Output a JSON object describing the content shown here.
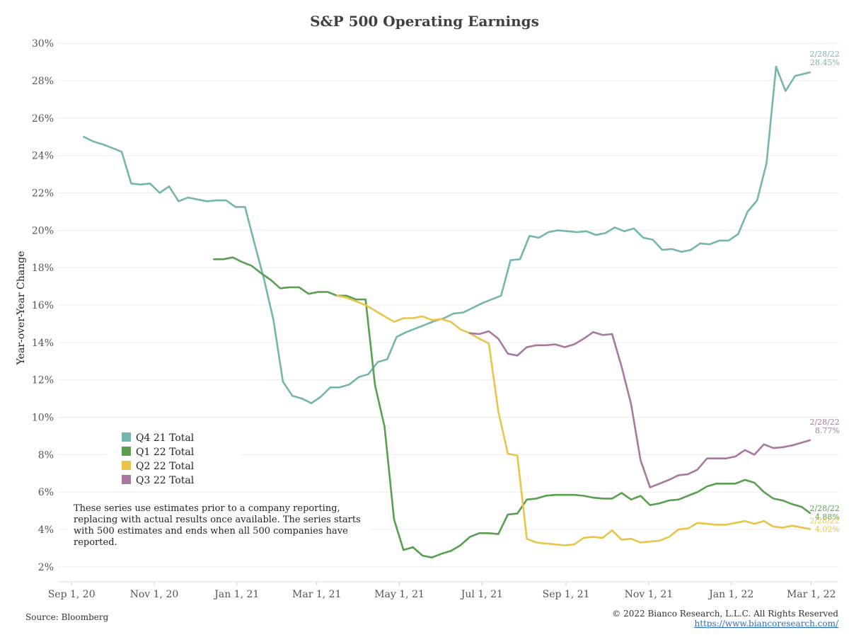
{
  "chart_data": {
    "type": "line",
    "title": "S&P 500 Operating Earnings",
    "ylabel": "Year-over-Year Change",
    "xlabel": "",
    "ylim": [
      1.2,
      30.5
    ],
    "xlim": [
      "2020-08-22",
      "2022-03-21"
    ],
    "yticks": [
      2,
      4,
      6,
      8,
      10,
      12,
      14,
      16,
      18,
      20,
      22,
      24,
      26,
      28,
      30
    ],
    "ytick_labels": [
      "2%",
      "4%",
      "6%",
      "8%",
      "10%",
      "12%",
      "14%",
      "16%",
      "18%",
      "20%",
      "22%",
      "24%",
      "26%",
      "28%",
      "30%"
    ],
    "xticks": [
      "2020-09-01",
      "2020-11-01",
      "2021-01-01",
      "2021-03-01",
      "2021-05-01",
      "2021-07-01",
      "2021-09-01",
      "2021-11-01",
      "2022-01-01",
      "2022-03-01"
    ],
    "xtick_labels": [
      "Sep 1, 20",
      "Nov 1, 20",
      "Jan 1, 21",
      "Mar 1, 21",
      "May 1, 21",
      "Jul 1, 21",
      "Sep 1, 21",
      "Nov 1, 21",
      "Jan 1, 22",
      "Mar 1, 22"
    ],
    "grid": true,
    "legend_position": "lower-left",
    "series": [
      {
        "name": "Q4 21 Total",
        "color": "#76b5ae",
        "end_date_label": "2/28/22",
        "end_value_label": "28.45%",
        "points": [
          [
            "2020-09-10",
            25.0
          ],
          [
            "2020-09-17",
            24.75
          ],
          [
            "2020-09-24",
            24.6
          ],
          [
            "2020-10-01",
            24.4
          ],
          [
            "2020-10-08",
            24.2
          ],
          [
            "2020-10-15",
            22.5
          ],
          [
            "2020-10-22",
            22.45
          ],
          [
            "2020-10-29",
            22.5
          ],
          [
            "2020-11-05",
            22.0
          ],
          [
            "2020-11-12",
            22.35
          ],
          [
            "2020-11-19",
            21.55
          ],
          [
            "2020-11-26",
            21.75
          ],
          [
            "2020-12-03",
            21.65
          ],
          [
            "2020-12-10",
            21.55
          ],
          [
            "2020-12-17",
            21.6
          ],
          [
            "2020-12-24",
            21.6
          ],
          [
            "2020-12-31",
            21.25
          ],
          [
            "2021-01-07",
            21.25
          ],
          [
            "2021-01-14",
            19.3
          ],
          [
            "2021-01-21",
            17.4
          ],
          [
            "2021-01-28",
            15.2
          ],
          [
            "2021-02-04",
            11.9
          ],
          [
            "2021-02-11",
            11.15
          ],
          [
            "2021-02-18",
            11.0
          ],
          [
            "2021-02-25",
            10.75
          ],
          [
            "2021-03-04",
            11.1
          ],
          [
            "2021-03-11",
            11.6
          ],
          [
            "2021-03-18",
            11.6
          ],
          [
            "2021-03-25",
            11.75
          ],
          [
            "2021-04-01",
            12.15
          ],
          [
            "2021-04-08",
            12.3
          ],
          [
            "2021-04-15",
            12.95
          ],
          [
            "2021-04-22",
            13.1
          ],
          [
            "2021-04-29",
            14.3
          ],
          [
            "2021-05-06",
            14.55
          ],
          [
            "2021-05-13",
            14.75
          ],
          [
            "2021-05-20",
            14.95
          ],
          [
            "2021-05-27",
            15.15
          ],
          [
            "2021-06-03",
            15.3
          ],
          [
            "2021-06-10",
            15.55
          ],
          [
            "2021-06-17",
            15.6
          ],
          [
            "2021-06-24",
            15.85
          ],
          [
            "2021-07-01",
            16.1
          ],
          [
            "2021-07-08",
            16.3
          ],
          [
            "2021-07-15",
            16.5
          ],
          [
            "2021-07-22",
            18.4
          ],
          [
            "2021-07-29",
            18.45
          ],
          [
            "2021-08-05",
            19.7
          ],
          [
            "2021-08-12",
            19.6
          ],
          [
            "2021-08-19",
            19.9
          ],
          [
            "2021-08-26",
            20.0
          ],
          [
            "2021-09-02",
            19.95
          ],
          [
            "2021-09-09",
            19.9
          ],
          [
            "2021-09-16",
            19.95
          ],
          [
            "2021-09-23",
            19.75
          ],
          [
            "2021-09-30",
            19.85
          ],
          [
            "2021-10-07",
            20.15
          ],
          [
            "2021-10-14",
            19.95
          ],
          [
            "2021-10-21",
            20.1
          ],
          [
            "2021-10-28",
            19.6
          ],
          [
            "2021-11-04",
            19.5
          ],
          [
            "2021-11-11",
            18.95
          ],
          [
            "2021-11-18",
            19.0
          ],
          [
            "2021-11-25",
            18.85
          ],
          [
            "2021-12-02",
            18.95
          ],
          [
            "2021-12-09",
            19.3
          ],
          [
            "2021-12-16",
            19.25
          ],
          [
            "2021-12-23",
            19.45
          ],
          [
            "2021-12-30",
            19.45
          ],
          [
            "2022-01-06",
            19.8
          ],
          [
            "2022-01-13",
            21.0
          ],
          [
            "2022-01-20",
            21.6
          ],
          [
            "2022-01-27",
            23.6
          ],
          [
            "2022-02-03",
            28.75
          ],
          [
            "2022-02-10",
            27.45
          ],
          [
            "2022-02-17",
            28.25
          ],
          [
            "2022-02-28",
            28.45
          ]
        ]
      },
      {
        "name": "Q1 22 Total",
        "color": "#5a9e52",
        "end_date_label": "2/28/22",
        "end_value_label": "4.88%",
        "points": [
          [
            "2020-12-15",
            18.45
          ],
          [
            "2020-12-22",
            18.45
          ],
          [
            "2020-12-29",
            18.55
          ],
          [
            "2021-01-05",
            18.3
          ],
          [
            "2021-01-12",
            18.1
          ],
          [
            "2021-01-19",
            17.7
          ],
          [
            "2021-01-26",
            17.35
          ],
          [
            "2021-02-02",
            16.9
          ],
          [
            "2021-02-09",
            16.95
          ],
          [
            "2021-02-16",
            16.95
          ],
          [
            "2021-02-23",
            16.6
          ],
          [
            "2021-03-02",
            16.7
          ],
          [
            "2021-03-09",
            16.7
          ],
          [
            "2021-03-16",
            16.5
          ],
          [
            "2021-03-23",
            16.5
          ],
          [
            "2021-03-30",
            16.3
          ],
          [
            "2021-04-06",
            16.3
          ],
          [
            "2021-04-13",
            11.7
          ],
          [
            "2021-04-20",
            9.5
          ],
          [
            "2021-04-27",
            4.55
          ],
          [
            "2021-05-04",
            2.9
          ],
          [
            "2021-05-11",
            3.05
          ],
          [
            "2021-05-18",
            2.6
          ],
          [
            "2021-05-25",
            2.5
          ],
          [
            "2021-06-01",
            2.7
          ],
          [
            "2021-06-08",
            2.85
          ],
          [
            "2021-06-15",
            3.15
          ],
          [
            "2021-06-22",
            3.6
          ],
          [
            "2021-06-29",
            3.8
          ],
          [
            "2021-07-06",
            3.8
          ],
          [
            "2021-07-13",
            3.75
          ],
          [
            "2021-07-20",
            4.8
          ],
          [
            "2021-07-27",
            4.85
          ],
          [
            "2021-08-03",
            5.6
          ],
          [
            "2021-08-10",
            5.65
          ],
          [
            "2021-08-17",
            5.8
          ],
          [
            "2021-08-24",
            5.85
          ],
          [
            "2021-08-31",
            5.85
          ],
          [
            "2021-09-07",
            5.85
          ],
          [
            "2021-09-14",
            5.8
          ],
          [
            "2021-09-21",
            5.7
          ],
          [
            "2021-09-28",
            5.65
          ],
          [
            "2021-10-05",
            5.65
          ],
          [
            "2021-10-12",
            5.95
          ],
          [
            "2021-10-19",
            5.6
          ],
          [
            "2021-10-26",
            5.8
          ],
          [
            "2021-11-02",
            5.3
          ],
          [
            "2021-11-09",
            5.4
          ],
          [
            "2021-11-16",
            5.55
          ],
          [
            "2021-11-23",
            5.6
          ],
          [
            "2021-11-30",
            5.8
          ],
          [
            "2021-12-07",
            6.0
          ],
          [
            "2021-12-14",
            6.3
          ],
          [
            "2021-12-21",
            6.45
          ],
          [
            "2021-12-28",
            6.45
          ],
          [
            "2022-01-04",
            6.45
          ],
          [
            "2022-01-11",
            6.65
          ],
          [
            "2022-01-18",
            6.5
          ],
          [
            "2022-01-25",
            6.0
          ],
          [
            "2022-02-01",
            5.65
          ],
          [
            "2022-02-08",
            5.55
          ],
          [
            "2022-02-15",
            5.35
          ],
          [
            "2022-02-22",
            5.2
          ],
          [
            "2022-02-28",
            4.88
          ]
        ]
      },
      {
        "name": "Q2 22 Total",
        "color": "#e8c54a",
        "end_date_label": "2/28/22",
        "end_value_label": "4.02%",
        "points": [
          [
            "2021-03-16",
            16.5
          ],
          [
            "2021-03-23",
            16.4
          ],
          [
            "2021-03-30",
            16.2
          ],
          [
            "2021-04-06",
            16.0
          ],
          [
            "2021-04-13",
            15.7
          ],
          [
            "2021-04-20",
            15.4
          ],
          [
            "2021-04-27",
            15.1
          ],
          [
            "2021-05-04",
            15.3
          ],
          [
            "2021-05-11",
            15.3
          ],
          [
            "2021-05-18",
            15.4
          ],
          [
            "2021-05-25",
            15.2
          ],
          [
            "2021-06-01",
            15.25
          ],
          [
            "2021-06-08",
            15.1
          ],
          [
            "2021-06-15",
            14.7
          ],
          [
            "2021-06-22",
            14.5
          ],
          [
            "2021-06-29",
            14.2
          ],
          [
            "2021-07-06",
            13.95
          ],
          [
            "2021-07-13",
            10.3
          ],
          [
            "2021-07-20",
            8.05
          ],
          [
            "2021-07-27",
            7.95
          ],
          [
            "2021-08-03",
            3.5
          ],
          [
            "2021-08-10",
            3.3
          ],
          [
            "2021-08-17",
            3.25
          ],
          [
            "2021-08-24",
            3.2
          ],
          [
            "2021-08-31",
            3.15
          ],
          [
            "2021-09-07",
            3.2
          ],
          [
            "2021-09-14",
            3.55
          ],
          [
            "2021-09-21",
            3.6
          ],
          [
            "2021-09-28",
            3.55
          ],
          [
            "2021-10-05",
            3.95
          ],
          [
            "2021-10-12",
            3.45
          ],
          [
            "2021-10-19",
            3.5
          ],
          [
            "2021-10-26",
            3.3
          ],
          [
            "2021-11-02",
            3.35
          ],
          [
            "2021-11-09",
            3.4
          ],
          [
            "2021-11-16",
            3.6
          ],
          [
            "2021-11-23",
            4.0
          ],
          [
            "2021-11-30",
            4.05
          ],
          [
            "2021-12-07",
            4.35
          ],
          [
            "2021-12-14",
            4.3
          ],
          [
            "2021-12-21",
            4.25
          ],
          [
            "2021-12-28",
            4.25
          ],
          [
            "2022-01-04",
            4.35
          ],
          [
            "2022-01-11",
            4.45
          ],
          [
            "2022-01-18",
            4.3
          ],
          [
            "2022-01-25",
            4.45
          ],
          [
            "2022-02-01",
            4.15
          ],
          [
            "2022-02-08",
            4.1
          ],
          [
            "2022-02-15",
            4.2
          ],
          [
            "2022-02-28",
            4.02
          ]
        ]
      },
      {
        "name": "Q3 22 Total",
        "color": "#a8789e",
        "end_date_label": "2/28/22",
        "end_value_label": "8.77%",
        "points": [
          [
            "2021-06-22",
            14.5
          ],
          [
            "2021-06-29",
            14.45
          ],
          [
            "2021-07-06",
            14.6
          ],
          [
            "2021-07-13",
            14.2
          ],
          [
            "2021-07-20",
            13.4
          ],
          [
            "2021-07-27",
            13.3
          ],
          [
            "2021-08-03",
            13.75
          ],
          [
            "2021-08-10",
            13.85
          ],
          [
            "2021-08-17",
            13.85
          ],
          [
            "2021-08-24",
            13.9
          ],
          [
            "2021-08-31",
            13.75
          ],
          [
            "2021-09-07",
            13.9
          ],
          [
            "2021-09-14",
            14.2
          ],
          [
            "2021-09-21",
            14.55
          ],
          [
            "2021-09-28",
            14.4
          ],
          [
            "2021-10-05",
            14.45
          ],
          [
            "2021-10-12",
            12.7
          ],
          [
            "2021-10-19",
            10.7
          ],
          [
            "2021-10-26",
            7.7
          ],
          [
            "2021-11-02",
            6.25
          ],
          [
            "2021-11-09",
            6.45
          ],
          [
            "2021-11-16",
            6.65
          ],
          [
            "2021-11-23",
            6.9
          ],
          [
            "2021-11-30",
            6.95
          ],
          [
            "2021-12-07",
            7.2
          ],
          [
            "2021-12-14",
            7.8
          ],
          [
            "2021-12-21",
            7.8
          ],
          [
            "2021-12-28",
            7.8
          ],
          [
            "2022-01-04",
            7.9
          ],
          [
            "2022-01-11",
            8.25
          ],
          [
            "2022-01-18",
            8.0
          ],
          [
            "2022-01-25",
            8.55
          ],
          [
            "2022-02-01",
            8.35
          ],
          [
            "2022-02-08",
            8.4
          ],
          [
            "2022-02-15",
            8.5
          ],
          [
            "2022-02-28",
            8.77
          ]
        ]
      }
    ],
    "annotation": [
      "These series use estimates prior to a company reporting,",
      "replacing with actual results once available. The series starts",
      "with 500 estimates and ends when all 500 companies have",
      "reported."
    ]
  },
  "footer": {
    "source": "Source: Bloomberg",
    "copyright": "© 2022 Bianco Research, L.L.C. All Rights Reserved",
    "link": "https://www.biancoresearch.com/"
  }
}
